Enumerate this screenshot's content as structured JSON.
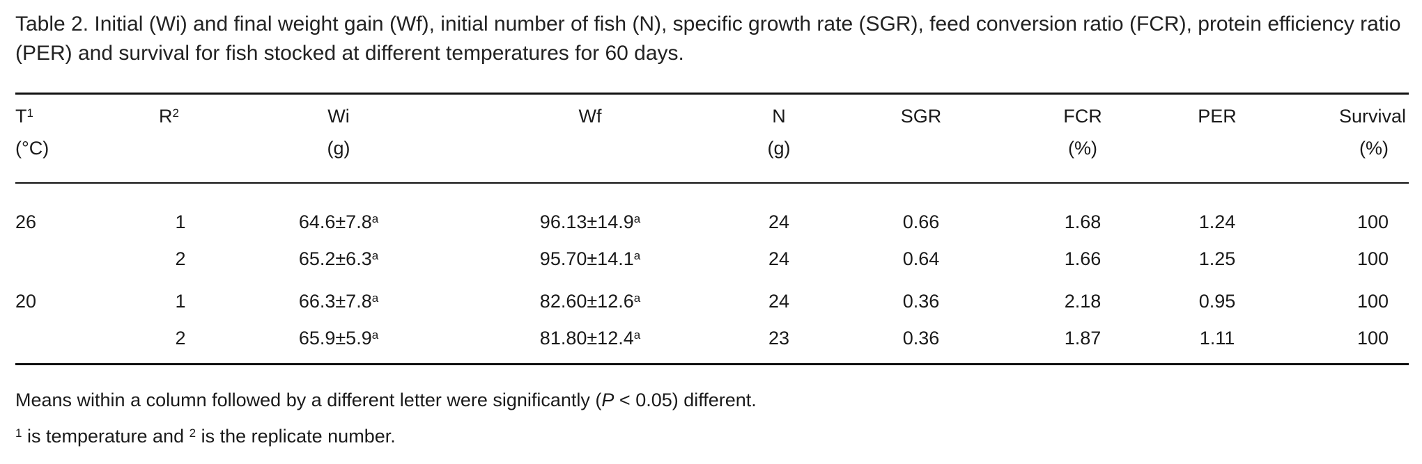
{
  "caption": "Table 2. Initial (Wi) and final weight gain (Wf), initial number of fish (N), specific growth rate (SGR), feed conversion ratio (FCR), protein efficiency ratio (PER) and survival for fish stocked at different temperatures for 60 days.",
  "headers": {
    "t": "T",
    "t_sup": "1",
    "t_unit": "(°C)",
    "r": "R",
    "r_sup": "2",
    "wi": "Wi",
    "wi_unit": "(g)",
    "wf": "Wf",
    "n": "N",
    "n_unit": "(g)",
    "sgr": "SGR",
    "fcr": "FCR",
    "fcr_unit": "(%)",
    "per": "PER",
    "survival": "Survival",
    "survival_unit": "(%)"
  },
  "rows": [
    {
      "t": "26",
      "r": "1",
      "wi": "64.6±7.8",
      "wi_sup": "a",
      "wf": "96.13±14.9",
      "wf_sup": "a",
      "n": "24",
      "sgr": "0.66",
      "fcr": "1.68",
      "per": "1.24",
      "survival": "100"
    },
    {
      "t": "",
      "r": "2",
      "wi": "65.2±6.3",
      "wi_sup": "a",
      "wf": "95.70±14.1",
      "wf_sup": "a",
      "n": "24",
      "sgr": "0.64",
      "fcr": "1.66",
      "per": "1.25",
      "survival": "100"
    },
    {
      "t": "20",
      "r": "1",
      "wi": "66.3±7.8",
      "wi_sup": "a",
      "wf": "82.60±12.6",
      "wf_sup": "a",
      "n": "24",
      "sgr": "0.36",
      "fcr": "2.18",
      "per": "0.95",
      "survival": "100"
    },
    {
      "t": "",
      "r": "2",
      "wi": "65.9±5.9",
      "wi_sup": "a",
      "wf": "81.80±12.4",
      "wf_sup": "a",
      "n": "23",
      "sgr": "0.36",
      "fcr": "1.87",
      "per": "1.11",
      "survival": "100"
    }
  ],
  "notes": {
    "line1_before": "Means within a column followed by a different letter were significantly (",
    "line1_p": "P",
    "line1_after": " < 0.05) different.",
    "line2_sup1": "1",
    "line2_mid": " is temperature and ",
    "line2_sup2": "2",
    "line2_end": " is the replicate number."
  }
}
